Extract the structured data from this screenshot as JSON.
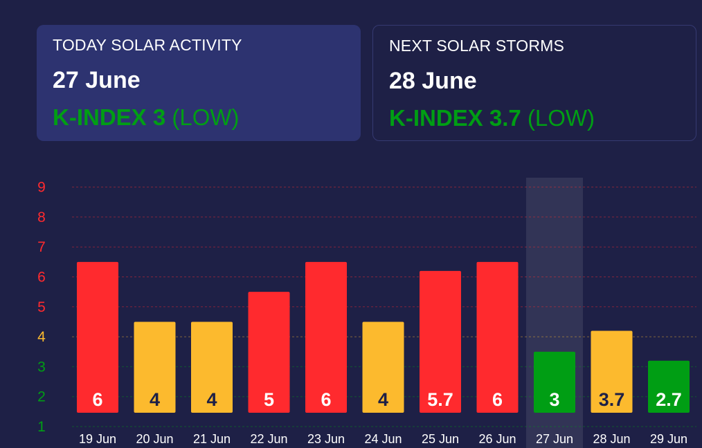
{
  "colors": {
    "background": "#1e2046",
    "card_active": "#2d3370",
    "red": "#ff2a2e",
    "yellow": "#fcba2e",
    "green": "#009e14",
    "text": "#ffffff",
    "dark_label": "#1e2046"
  },
  "cards": [
    {
      "heading": "TODAY SOLAR ACTIVITY",
      "date": "27 June",
      "k_label": "K-INDEX 3",
      "level": "(LOW)",
      "level_color": "#009e14",
      "highlighted": true
    },
    {
      "heading": "NEXT SOLAR STORMS",
      "date": "28 June",
      "k_label": "K-INDEX 3.7",
      "level": "(LOW)",
      "level_color": "#009e14",
      "highlighted": false
    }
  ],
  "chart_data": {
    "type": "bar",
    "title": "",
    "xlabel": "",
    "ylabel": "",
    "categories": [
      "19 Jun",
      "20 Jun",
      "21 Jun",
      "22 Jun",
      "23 Jun",
      "24 Jun",
      "25 Jun",
      "26 Jun",
      "27 Jun",
      "28 Jun",
      "29 Jun"
    ],
    "values": [
      6,
      4,
      4,
      5,
      6,
      4,
      5.7,
      6,
      3,
      3.7,
      2.7
    ],
    "value_labels": [
      "6",
      "4",
      "4",
      "5",
      "6",
      "4",
      "5.7",
      "6",
      "3",
      "3.7",
      "2.7"
    ],
    "bar_colors": [
      "#ff2a2e",
      "#fcba2e",
      "#fcba2e",
      "#ff2a2e",
      "#ff2a2e",
      "#fcba2e",
      "#ff2a2e",
      "#ff2a2e",
      "#009e14",
      "#fcba2e",
      "#009e14"
    ],
    "label_colors": [
      "#ffffff",
      "#1e2046",
      "#1e2046",
      "#ffffff",
      "#ffffff",
      "#1e2046",
      "#ffffff",
      "#ffffff",
      "#ffffff",
      "#1e2046",
      "#ffffff"
    ],
    "highlight_category": "27 Jun",
    "y_ticks": [
      "1",
      "2",
      "3",
      "4",
      "5",
      "6",
      "7",
      "8",
      "9"
    ],
    "y_tick_colors": [
      "#009e14",
      "#009e14",
      "#009e14",
      "#fcba2e",
      "#ff2a2e",
      "#ff2a2e",
      "#ff2a2e",
      "#ff2a2e",
      "#ff2a2e"
    ],
    "ylim": [
      1,
      9
    ],
    "grid": true,
    "legend": "none"
  }
}
